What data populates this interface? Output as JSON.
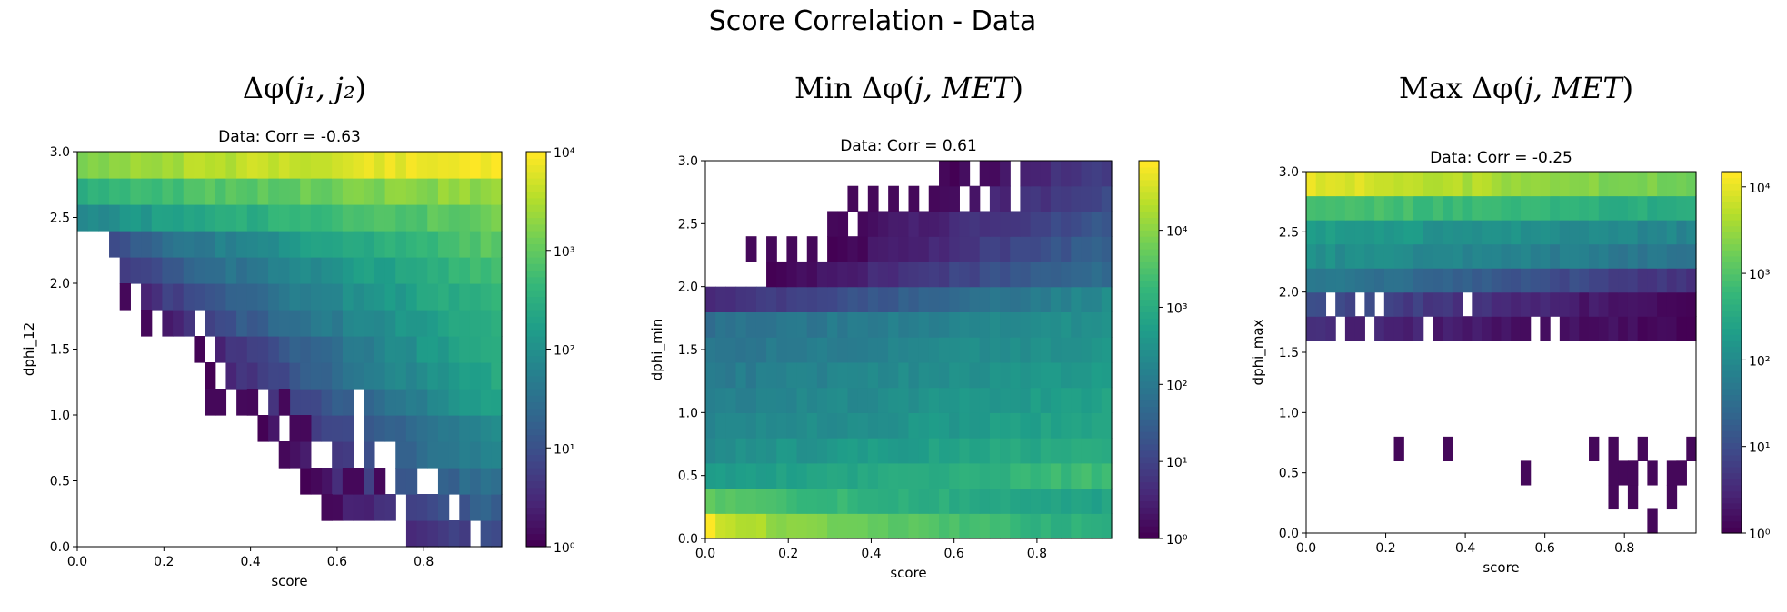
{
  "figure": {
    "title": "Score Correlation - Data"
  },
  "chart_data": [
    {
      "type": "heatmap",
      "panel_title": "Δφ(j1, j2)",
      "title_parts": {
        "prefix": "",
        "sym": "Δφ(",
        "args": "j₁, j₂",
        "close": ")"
      },
      "title": "Data: Corr = -0.63",
      "xlabel": "score",
      "ylabel": "dphi_12",
      "xlim": [
        0.0,
        0.98
      ],
      "ylim": [
        0.0,
        3.0
      ],
      "x_bins": 40,
      "y_bins": 15,
      "xticks": [
        "0.0",
        "0.2",
        "0.4",
        "0.6",
        "0.8"
      ],
      "xtick_values": [
        0.0,
        0.2,
        0.4,
        0.6,
        0.8
      ],
      "yticks": [
        "0.0",
        "0.5",
        "1.0",
        "1.5",
        "2.0",
        "2.5",
        "3.0"
      ],
      "ytick_values": [
        0.0,
        0.5,
        1.0,
        1.5,
        2.0,
        2.5,
        3.0
      ],
      "colorbar": {
        "scale": "log",
        "min": 1,
        "max": 10000,
        "ticks": [
          "10⁰",
          "10¹",
          "10²",
          "10³",
          "10⁴"
        ],
        "tick_values": [
          1,
          10,
          100,
          1000,
          10000
        ]
      },
      "colormap": "viridis",
      "row_max_log": [
        1.0,
        1.3,
        1.6,
        1.9,
        2.0,
        2.3,
        2.5,
        2.6,
        2.6,
        2.7,
        2.8,
        3.0,
        3.1,
        3.4,
        4.0
      ],
      "row_min_log": [
        0.0,
        0.0,
        0.0,
        0.0,
        0.0,
        0.0,
        0.0,
        0.0,
        0.3,
        0.4,
        0.6,
        0.9,
        1.8,
        2.5,
        3.2
      ],
      "row_start_score": [
        0.64,
        0.58,
        0.52,
        0.47,
        0.42,
        0.38,
        0.31,
        0.27,
        0.21,
        0.15,
        0.12,
        0.08,
        0.01,
        0.0,
        0.0
      ],
      "row_fill_fraction": [
        0.35,
        0.4,
        0.45,
        0.5,
        0.55,
        0.6,
        0.7,
        0.75,
        0.85,
        0.9,
        0.95,
        1.0,
        1.0,
        1.0,
        1.0
      ],
      "isolated_cells": [
        [
          0.31,
          1.1
        ],
        [
          0.33,
          1.1
        ],
        [
          0.4,
          1.1
        ],
        [
          0.47,
          1.0
        ],
        [
          0.49,
          0.9
        ],
        [
          0.52,
          0.8
        ],
        [
          0.48,
          0.7
        ],
        [
          0.55,
          0.6
        ],
        [
          0.58,
          0.3
        ],
        [
          0.62,
          0.5
        ],
        [
          0.66,
          0.5
        ],
        [
          0.71,
          0.4
        ],
        [
          0.16,
          1.6
        ],
        [
          0.11,
          1.9
        ]
      ],
      "corr": -0.63
    },
    {
      "type": "heatmap",
      "panel_title": "Min Δφ(j, MET)",
      "title_parts": {
        "prefix": "Min ",
        "sym": "Δφ(",
        "args": "j, MET",
        "close": ")"
      },
      "title": "Data: Corr = 0.61",
      "xlabel": "score",
      "ylabel": "dphi_min",
      "xlim": [
        0.0,
        0.98
      ],
      "ylim": [
        0.0,
        3.0
      ],
      "x_bins": 40,
      "y_bins": 15,
      "xticks": [
        "0.0",
        "0.2",
        "0.4",
        "0.6",
        "0.8"
      ],
      "xtick_values": [
        0.0,
        0.2,
        0.4,
        0.6,
        0.8
      ],
      "yticks": [
        "0.0",
        "0.5",
        "1.0",
        "1.5",
        "2.0",
        "2.5",
        "3.0"
      ],
      "ytick_values": [
        0.0,
        0.5,
        1.0,
        1.5,
        2.0,
        2.5,
        3.0
      ],
      "colorbar": {
        "scale": "log",
        "min": 1,
        "max": 80000,
        "ticks": [
          "10⁰",
          "10¹",
          "10²",
          "10³",
          "10⁴"
        ],
        "tick_values": [
          1,
          10,
          100,
          1000,
          10000
        ]
      },
      "colormap": "viridis",
      "row_max_log": [
        4.9,
        3.8,
        3.4,
        3.1,
        2.9,
        2.8,
        2.7,
        2.6,
        2.5,
        2.4,
        1.8,
        1.6,
        1.4,
        1.2,
        1.0
      ],
      "row_min_log": [
        3.0,
        2.8,
        2.6,
        2.4,
        2.2,
        2.1,
        2.0,
        1.9,
        1.8,
        0.6,
        0.0,
        0.0,
        0.0,
        0.0,
        0.0
      ],
      "row_start_score": [
        0.0,
        0.0,
        0.0,
        0.0,
        0.0,
        0.0,
        0.0,
        0.0,
        0.0,
        0.0,
        0.15,
        0.3,
        0.34,
        0.52,
        0.59
      ],
      "row_fill_fraction": [
        1.0,
        1.0,
        1.0,
        1.0,
        1.0,
        1.0,
        1.0,
        1.0,
        1.0,
        1.0,
        1.0,
        0.85,
        0.75,
        0.65,
        0.6
      ],
      "isolated_cells": [
        [
          0.12,
          2.2
        ],
        [
          0.16,
          2.3
        ],
        [
          0.2,
          2.3
        ],
        [
          0.25,
          2.4
        ],
        [
          0.31,
          2.5
        ],
        [
          0.36,
          2.6
        ],
        [
          0.41,
          2.6
        ],
        [
          0.45,
          2.7
        ],
        [
          0.5,
          2.7
        ],
        [
          0.55,
          2.8
        ],
        [
          0.58,
          2.9
        ]
      ],
      "corr": 0.61
    },
    {
      "type": "heatmap",
      "panel_title": "Max Δφ(j, MET)",
      "title_parts": {
        "prefix": "Max ",
        "sym": "Δφ(",
        "args": "j, MET",
        "close": ")"
      },
      "title": "Data: Corr = -0.25",
      "xlabel": "score",
      "ylabel": "dphi_max",
      "xlim": [
        0.0,
        0.98
      ],
      "ylim": [
        0.0,
        3.0
      ],
      "x_bins": 40,
      "y_bins": 15,
      "xticks": [
        "0.0",
        "0.2",
        "0.4",
        "0.6",
        "0.8"
      ],
      "xtick_values": [
        0.0,
        0.2,
        0.4,
        0.6,
        0.8
      ],
      "yticks": [
        "0.0",
        "0.5",
        "1.0",
        "1.5",
        "2.0",
        "2.5",
        "3.0"
      ],
      "ytick_values": [
        0.0,
        0.5,
        1.0,
        1.5,
        2.0,
        2.5,
        3.0
      ],
      "colorbar": {
        "scale": "log",
        "min": 1,
        "max": 15000,
        "ticks": [
          "10⁰",
          "10¹",
          "10²",
          "10³",
          "10⁴"
        ],
        "tick_values": [
          1,
          10,
          100,
          1000,
          10000
        ]
      },
      "colormap": "viridis",
      "row_max_log": [
        0.0,
        0.0,
        0.0,
        0.0,
        0.0,
        0.0,
        0.0,
        0.0,
        0.5,
        1.0,
        1.8,
        2.1,
        2.3,
        3.0,
        4.0
      ],
      "row_min_log": [
        0.0,
        0.0,
        0.0,
        0.0,
        0.0,
        0.0,
        0.0,
        0.0,
        0.0,
        0.0,
        0.5,
        1.6,
        1.9,
        2.5,
        3.2
      ],
      "row_start_score": [
        0.98,
        0.98,
        0.98,
        0.98,
        0.98,
        0.98,
        0.98,
        0.98,
        0.0,
        0.0,
        0.0,
        0.0,
        0.0,
        0.0,
        0.0
      ],
      "row_fill_fraction": [
        0,
        0,
        0,
        0,
        0,
        0,
        0,
        0,
        0.55,
        0.7,
        1.0,
        1.0,
        1.0,
        1.0,
        1.0
      ],
      "isolated_cells": [
        [
          0.88,
          0.1
        ],
        [
          0.92,
          0.3
        ],
        [
          0.77,
          0.3
        ],
        [
          0.81,
          0.3
        ],
        [
          0.86,
          0.4
        ],
        [
          0.94,
          0.4
        ],
        [
          0.55,
          0.4
        ],
        [
          0.82,
          0.5
        ],
        [
          0.93,
          0.5
        ],
        [
          0.95,
          0.6
        ],
        [
          0.96,
          0.7
        ],
        [
          0.76,
          0.6
        ],
        [
          0.8,
          0.6
        ],
        [
          0.83,
          0.6
        ],
        [
          0.23,
          0.7
        ],
        [
          0.35,
          0.7
        ],
        [
          0.72,
          0.7
        ],
        [
          0.78,
          0.7
        ],
        [
          0.84,
          0.7
        ]
      ],
      "corr": -0.25
    }
  ]
}
